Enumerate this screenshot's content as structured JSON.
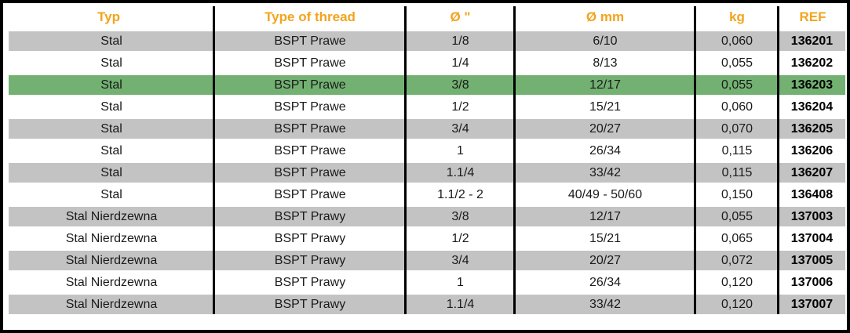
{
  "colors": {
    "header_text": "#F2A41C",
    "row_shaded": "#C3C3C3",
    "row_highlight": "#72B172",
    "border": "#000000",
    "body_text": "#1A1A1A"
  },
  "table": {
    "headers": [
      "Typ",
      "Type of thread",
      "Ø \"",
      "Ø mm",
      "kg",
      "REF"
    ],
    "rows": [
      {
        "typ": "Stal",
        "thread": "BSPT Prawe",
        "d_inch": "1/8",
        "d_mm": "6/10",
        "kg": "0,060",
        "ref": "136201",
        "highlighted": false
      },
      {
        "typ": "Stal",
        "thread": "BSPT Prawe",
        "d_inch": "1/4",
        "d_mm": "8/13",
        "kg": "0,055",
        "ref": "136202",
        "highlighted": false
      },
      {
        "typ": "Stal",
        "thread": "BSPT Prawe",
        "d_inch": "3/8",
        "d_mm": "12/17",
        "kg": "0,055",
        "ref": "136203",
        "highlighted": true
      },
      {
        "typ": "Stal",
        "thread": "BSPT Prawe",
        "d_inch": "1/2",
        "d_mm": "15/21",
        "kg": "0,060",
        "ref": "136204",
        "highlighted": false
      },
      {
        "typ": "Stal",
        "thread": "BSPT Prawe",
        "d_inch": "3/4",
        "d_mm": "20/27",
        "kg": "0,070",
        "ref": "136205",
        "highlighted": false
      },
      {
        "typ": "Stal",
        "thread": "BSPT Prawe",
        "d_inch": "1",
        "d_mm": "26/34",
        "kg": "0,115",
        "ref": "136206",
        "highlighted": false
      },
      {
        "typ": "Stal",
        "thread": "BSPT Prawe",
        "d_inch": "1.1/4",
        "d_mm": "33/42",
        "kg": "0,115",
        "ref": "136207",
        "highlighted": false
      },
      {
        "typ": "Stal",
        "thread": "BSPT Prawe",
        "d_inch": "1.1/2 - 2",
        "d_mm": "40/49 - 50/60",
        "kg": "0,150",
        "ref": "136408",
        "highlighted": false
      },
      {
        "typ": "Stal Nierdzewna",
        "thread": "BSPT Prawy",
        "d_inch": "3/8",
        "d_mm": "12/17",
        "kg": "0,055",
        "ref": "137003",
        "highlighted": false
      },
      {
        "typ": "Stal Nierdzewna",
        "thread": "BSPT Prawy",
        "d_inch": "1/2",
        "d_mm": "15/21",
        "kg": "0,065",
        "ref": "137004",
        "highlighted": false
      },
      {
        "typ": "Stal Nierdzewna",
        "thread": "BSPT Prawy",
        "d_inch": "3/4",
        "d_mm": "20/27",
        "kg": "0,072",
        "ref": "137005",
        "highlighted": false
      },
      {
        "typ": "Stal Nierdzewna",
        "thread": "BSPT Prawy",
        "d_inch": "1",
        "d_mm": "26/34",
        "kg": "0,120",
        "ref": "137006",
        "highlighted": false
      },
      {
        "typ": "Stal Nierdzewna",
        "thread": "BSPT Prawy",
        "d_inch": "1.1/4",
        "d_mm": "33/42",
        "kg": "0,120",
        "ref": "137007",
        "highlighted": false
      }
    ]
  }
}
